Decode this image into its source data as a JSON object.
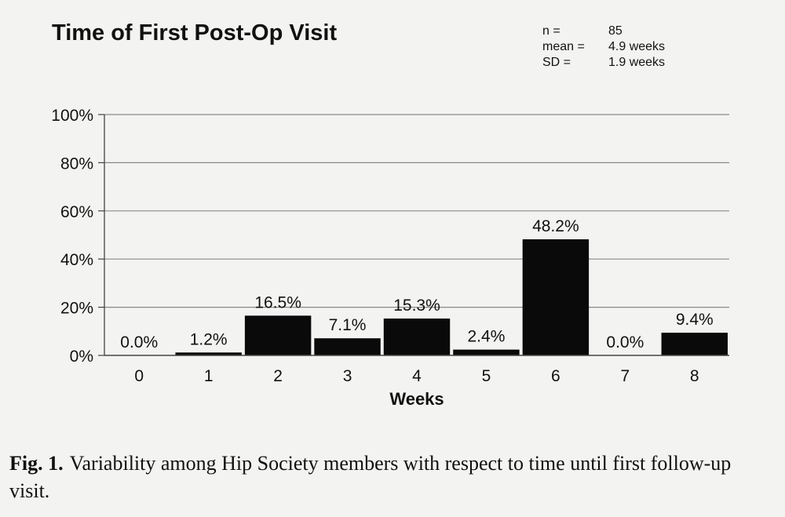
{
  "chart_data": {
    "type": "bar",
    "title": "Time of First Post-Op Visit",
    "stats": [
      {
        "label": "n =",
        "value": "85"
      },
      {
        "label": "mean =",
        "value": "4.9 weeks"
      },
      {
        "label": "SD =",
        "value": "1.9 weeks"
      }
    ],
    "categories": [
      "0",
      "1",
      "2",
      "3",
      "4",
      "5",
      "6",
      "7",
      "8"
    ],
    "values": [
      0.0,
      1.2,
      16.5,
      7.1,
      15.3,
      2.4,
      48.2,
      0.0,
      9.4
    ],
    "data_labels": [
      "0.0%",
      "1.2%",
      "16.5%",
      "7.1%",
      "15.3%",
      "2.4%",
      "48.2%",
      "0.0%",
      "9.4%"
    ],
    "xlabel": "Weeks",
    "ylabel": "",
    "ylim": [
      0,
      100
    ],
    "yticks": [
      0,
      20,
      40,
      60,
      80,
      100
    ],
    "ytick_labels": [
      "0%",
      "20%",
      "40%",
      "60%",
      "80%",
      "100%"
    ],
    "grid": true,
    "bar_color": "#0a0a0a"
  },
  "caption": {
    "label": "Fig. 1.",
    "text": "Variability among Hip Society members with respect to time until first follow-up visit."
  }
}
